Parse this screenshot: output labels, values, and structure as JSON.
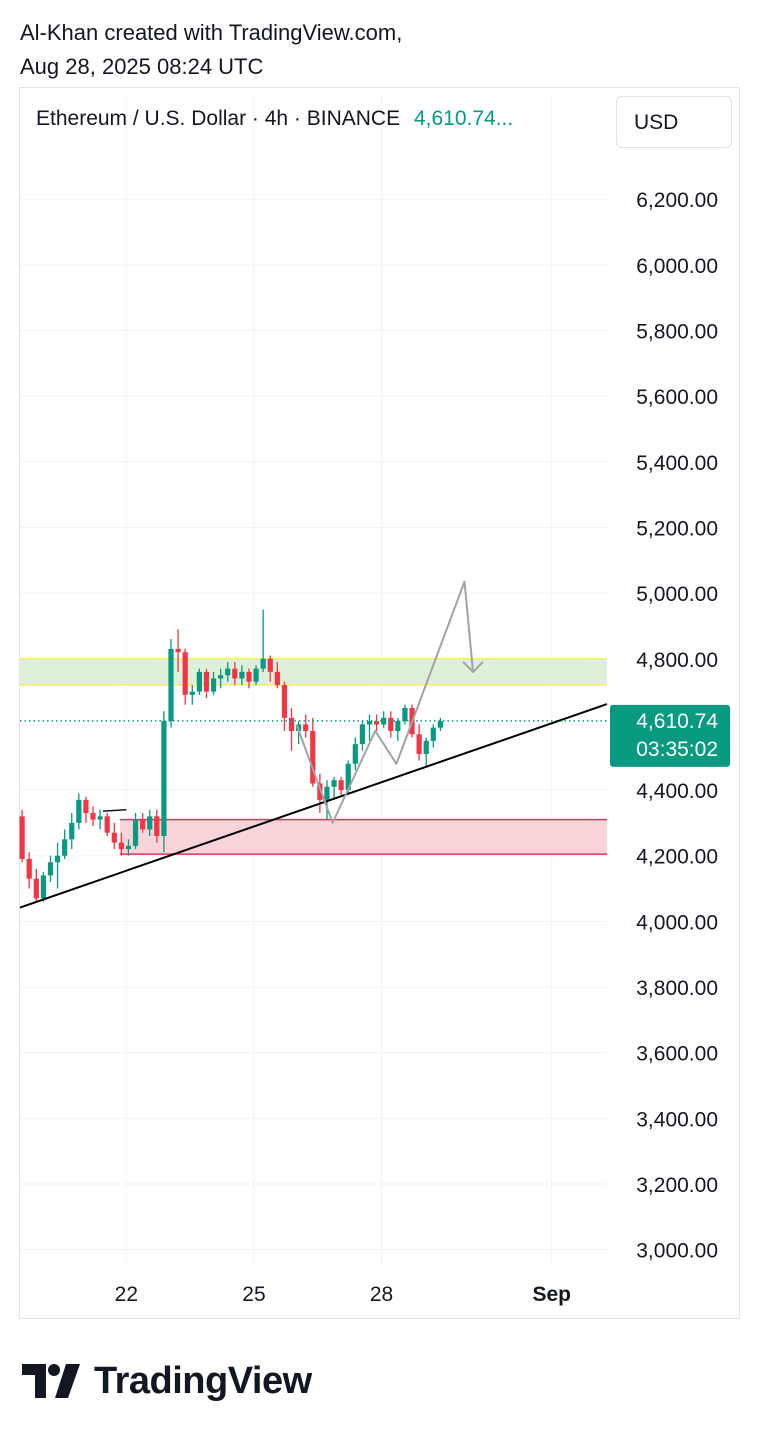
{
  "attribution": {
    "line1": "Al-Khan created with TradingView.com,",
    "line2": "Aug 28, 2025 08:24 UTC"
  },
  "legend": {
    "symbol_text": "Ethereum / U.S. Dollar · 4h · BINANCE",
    "last_price_text": "4,610.74..."
  },
  "currency_button": {
    "label": "USD"
  },
  "price_marker": {
    "price": "4,610.74",
    "countdown": "03:35:02"
  },
  "brand": {
    "name": "TradingView"
  },
  "colors": {
    "up": "#089981",
    "down": "#f23645",
    "supply_zone_fill": "#dff0d8",
    "supply_zone_border": "#f5ef6b",
    "demand_zone_fill": "#fad4d9",
    "demand_zone_border": "#e0335a",
    "trendline": "#000000",
    "projection": "#a3a3a3",
    "grid": "#f0f3fa"
  },
  "chart_data": {
    "type": "candlestick",
    "title": "Ethereum / U.S. Dollar · 4h · BINANCE",
    "timeframe": "4h",
    "currency": "USD",
    "ylim": [
      2950,
      6350
    ],
    "y_ticks": [
      6200,
      6000,
      5800,
      5600,
      5400,
      5200,
      5000,
      4800,
      4600,
      4400,
      4200,
      4000,
      3800,
      3600,
      3400,
      3200,
      3000
    ],
    "y_tick_labels": [
      "6,200.00",
      "6,000.00",
      "5,800.00",
      "5,600.00",
      "5,400.00",
      "5,200.00",
      "5,000.00",
      "4,800.00",
      "4,600.00",
      "4,400.00",
      "4,200.00",
      "4,000.00",
      "3,800.00",
      "3,600.00",
      "3,400.00",
      "3,200.00",
      "3,000.00"
    ],
    "x_range_days": [
      19.5,
      33.3
    ],
    "x_ticks": [
      {
        "day": 22,
        "label": "22",
        "bold": false
      },
      {
        "day": 25,
        "label": "25",
        "bold": false
      },
      {
        "day": 28,
        "label": "28",
        "bold": false
      },
      {
        "day": 32,
        "label": "Sep",
        "bold": true
      }
    ],
    "grid": true,
    "last_price": 4610.74,
    "candles": [
      {
        "o": 4320,
        "h": 4340,
        "l": 4180,
        "c": 4190
      },
      {
        "o": 4190,
        "h": 4210,
        "l": 4100,
        "c": 4130
      },
      {
        "o": 4130,
        "h": 4160,
        "l": 4060,
        "c": 4070
      },
      {
        "o": 4070,
        "h": 4150,
        "l": 4060,
        "c": 4140
      },
      {
        "o": 4140,
        "h": 4200,
        "l": 4120,
        "c": 4180
      },
      {
        "o": 4180,
        "h": 4240,
        "l": 4100,
        "c": 4200
      },
      {
        "o": 4200,
        "h": 4280,
        "l": 4190,
        "c": 4250
      },
      {
        "o": 4250,
        "h": 4330,
        "l": 4220,
        "c": 4300
      },
      {
        "o": 4300,
        "h": 4390,
        "l": 4280,
        "c": 4370
      },
      {
        "o": 4370,
        "h": 4380,
        "l": 4300,
        "c": 4330
      },
      {
        "o": 4330,
        "h": 4350,
        "l": 4290,
        "c": 4310
      },
      {
        "o": 4310,
        "h": 4340,
        "l": 4280,
        "c": 4320
      },
      {
        "o": 4320,
        "h": 4330,
        "l": 4260,
        "c": 4270
      },
      {
        "o": 4270,
        "h": 4300,
        "l": 4220,
        "c": 4240
      },
      {
        "o": 4240,
        "h": 4270,
        "l": 4200,
        "c": 4220
      },
      {
        "o": 4220,
        "h": 4250,
        "l": 4200,
        "c": 4230
      },
      {
        "o": 4230,
        "h": 4330,
        "l": 4220,
        "c": 4310
      },
      {
        "o": 4310,
        "h": 4330,
        "l": 4270,
        "c": 4280
      },
      {
        "o": 4280,
        "h": 4340,
        "l": 4260,
        "c": 4320
      },
      {
        "o": 4320,
        "h": 4340,
        "l": 4240,
        "c": 4260
      },
      {
        "o": 4260,
        "h": 4640,
        "l": 4210,
        "c": 4610
      },
      {
        "o": 4610,
        "h": 4860,
        "l": 4590,
        "c": 4830
      },
      {
        "o": 4830,
        "h": 4890,
        "l": 4760,
        "c": 4820
      },
      {
        "o": 4820,
        "h": 4830,
        "l": 4660,
        "c": 4690
      },
      {
        "o": 4690,
        "h": 4720,
        "l": 4660,
        "c": 4700
      },
      {
        "o": 4700,
        "h": 4770,
        "l": 4690,
        "c": 4760
      },
      {
        "o": 4760,
        "h": 4770,
        "l": 4680,
        "c": 4700
      },
      {
        "o": 4700,
        "h": 4760,
        "l": 4690,
        "c": 4740
      },
      {
        "o": 4740,
        "h": 4770,
        "l": 4710,
        "c": 4750
      },
      {
        "o": 4750,
        "h": 4790,
        "l": 4730,
        "c": 4770
      },
      {
        "o": 4770,
        "h": 4790,
        "l": 4720,
        "c": 4740
      },
      {
        "o": 4740,
        "h": 4780,
        "l": 4720,
        "c": 4760
      },
      {
        "o": 4760,
        "h": 4770,
        "l": 4710,
        "c": 4730
      },
      {
        "o": 4730,
        "h": 4780,
        "l": 4720,
        "c": 4770
      },
      {
        "o": 4770,
        "h": 4950,
        "l": 4760,
        "c": 4800
      },
      {
        "o": 4800,
        "h": 4810,
        "l": 4730,
        "c": 4760
      },
      {
        "o": 4760,
        "h": 4790,
        "l": 4710,
        "c": 4720
      },
      {
        "o": 4720,
        "h": 4730,
        "l": 4580,
        "c": 4620
      },
      {
        "o": 4620,
        "h": 4650,
        "l": 4520,
        "c": 4580
      },
      {
        "o": 4580,
        "h": 4610,
        "l": 4540,
        "c": 4600
      },
      {
        "o": 4600,
        "h": 4630,
        "l": 4560,
        "c": 4580
      },
      {
        "o": 4580,
        "h": 4620,
        "l": 4410,
        "c": 4420
      },
      {
        "o": 4420,
        "h": 4450,
        "l": 4330,
        "c": 4370
      },
      {
        "o": 4370,
        "h": 4430,
        "l": 4310,
        "c": 4410
      },
      {
        "o": 4410,
        "h": 4440,
        "l": 4370,
        "c": 4430
      },
      {
        "o": 4430,
        "h": 4440,
        "l": 4380,
        "c": 4400
      },
      {
        "o": 4400,
        "h": 4490,
        "l": 4390,
        "c": 4480
      },
      {
        "o": 4480,
        "h": 4560,
        "l": 4460,
        "c": 4540
      },
      {
        "o": 4540,
        "h": 4610,
        "l": 4520,
        "c": 4600
      },
      {
        "o": 4600,
        "h": 4630,
        "l": 4550,
        "c": 4610
      },
      {
        "o": 4610,
        "h": 4630,
        "l": 4580,
        "c": 4600
      },
      {
        "o": 4600,
        "h": 4640,
        "l": 4590,
        "c": 4620
      },
      {
        "o": 4620,
        "h": 4640,
        "l": 4560,
        "c": 4580
      },
      {
        "o": 4580,
        "h": 4620,
        "l": 4550,
        "c": 4610
      },
      {
        "o": 4610,
        "h": 4660,
        "l": 4600,
        "c": 4650
      },
      {
        "o": 4650,
        "h": 4660,
        "l": 4560,
        "c": 4570
      },
      {
        "o": 4570,
        "h": 4600,
        "l": 4490,
        "c": 4510
      },
      {
        "o": 4510,
        "h": 4560,
        "l": 4470,
        "c": 4550
      },
      {
        "o": 4550,
        "h": 4600,
        "l": 4530,
        "c": 4590
      },
      {
        "o": 4590,
        "h": 4620,
        "l": 4580,
        "c": 4610
      }
    ],
    "zones": [
      {
        "name": "supply",
        "from": 4720,
        "to": 4800,
        "x_start_day": 19.5
      },
      {
        "name": "demand",
        "from": 4205,
        "to": 4310,
        "x_start_day": 21.85
      }
    ],
    "trendline": [
      {
        "day": 19.5,
        "price": 4042
      },
      {
        "day": 33.3,
        "price": 4662
      }
    ],
    "range_marker": [
      {
        "day": 21.45,
        "price": 4336
      },
      {
        "day": 22.0,
        "price": 4340
      }
    ],
    "projection_path": [
      {
        "day": 26.0,
        "price": 4600
      },
      {
        "day": 26.85,
        "price": 4300
      },
      {
        "day": 27.85,
        "price": 4580
      },
      {
        "day": 28.35,
        "price": 4480
      },
      {
        "day": 29.95,
        "price": 5035
      },
      {
        "day": 30.15,
        "price": 4760
      }
    ]
  }
}
